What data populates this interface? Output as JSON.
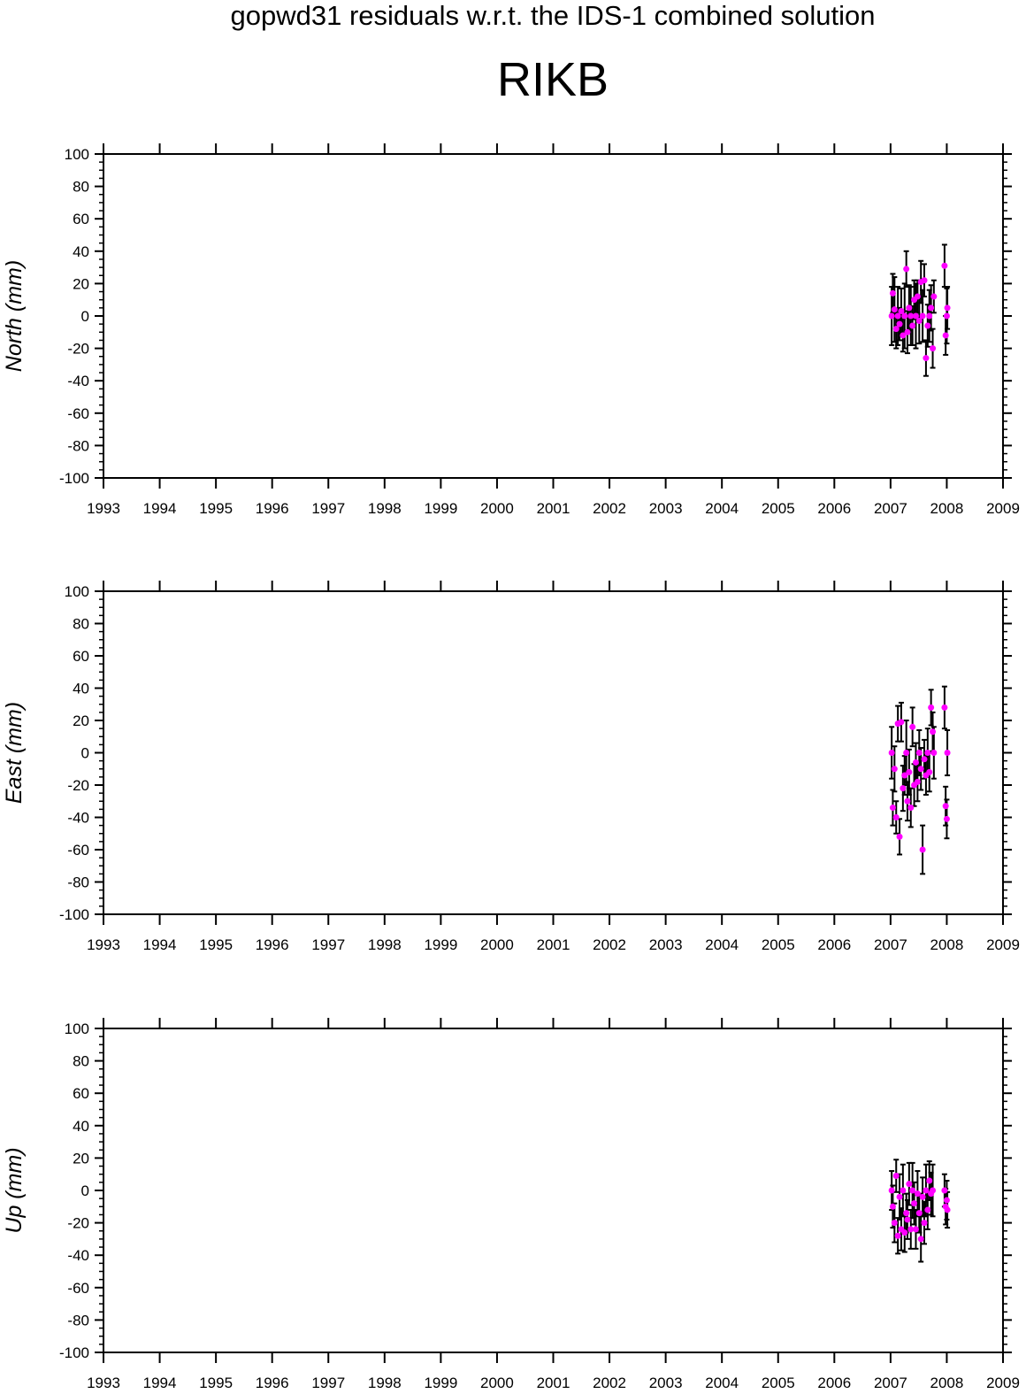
{
  "header": {
    "title": "gopwd31 residuals w.r.t. the IDS-1 combined solution",
    "station": "RIKB"
  },
  "colors": {
    "marker": "#ff00ff",
    "errorbar": "#000000",
    "axis": "#000000",
    "background": "#ffffff"
  },
  "chart_data": [
    {
      "type": "scatter",
      "ylabel": "North (mm)",
      "xlabel": "",
      "xlim": [
        1993,
        2009
      ],
      "ylim": [
        -100,
        100
      ],
      "x_ticks": [
        "1993",
        "1994",
        "1995",
        "1996",
        "1997",
        "1998",
        "1999",
        "2000",
        "2001",
        "2002",
        "2003",
        "2004",
        "2005",
        "2006",
        "2007",
        "2008",
        "2009"
      ],
      "y_ticks": [
        "100",
        "80",
        "60",
        "40",
        "20",
        "0",
        "-20",
        "-40",
        "-60",
        "-80",
        "-100"
      ],
      "grid": false,
      "series": [
        {
          "error_bars": true,
          "points": [
            {
              "x": 2007.02,
              "y": 0,
              "err": 18
            },
            {
              "x": 2007.04,
              "y": 14,
              "err": 12
            },
            {
              "x": 2007.07,
              "y": 4,
              "err": 20
            },
            {
              "x": 2007.1,
              "y": -8,
              "err": 12
            },
            {
              "x": 2007.13,
              "y": 0,
              "err": 18
            },
            {
              "x": 2007.16,
              "y": -5,
              "err": 10
            },
            {
              "x": 2007.19,
              "y": 3,
              "err": 14
            },
            {
              "x": 2007.22,
              "y": -12,
              "err": 10
            },
            {
              "x": 2007.25,
              "y": 0,
              "err": 20
            },
            {
              "x": 2007.28,
              "y": 29,
              "err": 11
            },
            {
              "x": 2007.3,
              "y": -10,
              "err": 13
            },
            {
              "x": 2007.33,
              "y": 5,
              "err": 14
            },
            {
              "x": 2007.36,
              "y": 0,
              "err": 18
            },
            {
              "x": 2007.39,
              "y": -6,
              "err": 12
            },
            {
              "x": 2007.42,
              "y": 10,
              "err": 12
            },
            {
              "x": 2007.45,
              "y": 0,
              "err": 20
            },
            {
              "x": 2007.48,
              "y": 12,
              "err": 10
            },
            {
              "x": 2007.51,
              "y": -3,
              "err": 14
            },
            {
              "x": 2007.54,
              "y": 21,
              "err": 13
            },
            {
              "x": 2007.57,
              "y": 0,
              "err": 16
            },
            {
              "x": 2007.6,
              "y": 22,
              "err": 10
            },
            {
              "x": 2007.63,
              "y": -26,
              "err": 11
            },
            {
              "x": 2007.66,
              "y": -6,
              "err": 13
            },
            {
              "x": 2007.69,
              "y": 0,
              "err": 16
            },
            {
              "x": 2007.72,
              "y": 5,
              "err": 14
            },
            {
              "x": 2007.75,
              "y": -20,
              "err": 12
            },
            {
              "x": 2007.77,
              "y": 12,
              "err": 10
            },
            {
              "x": 2007.96,
              "y": 31,
              "err": 13
            },
            {
              "x": 2007.98,
              "y": -12,
              "err": 12
            },
            {
              "x": 2008.0,
              "y": 0,
              "err": 17
            },
            {
              "x": 2008.01,
              "y": 5,
              "err": 13
            }
          ]
        }
      ]
    },
    {
      "type": "scatter",
      "ylabel": "East (mm)",
      "xlabel": "",
      "xlim": [
        1993,
        2009
      ],
      "ylim": [
        -100,
        100
      ],
      "x_ticks": [
        "1993",
        "1994",
        "1995",
        "1996",
        "1997",
        "1998",
        "1999",
        "2000",
        "2001",
        "2002",
        "2003",
        "2004",
        "2005",
        "2006",
        "2007",
        "2008",
        "2009"
      ],
      "y_ticks": [
        "100",
        "80",
        "60",
        "40",
        "20",
        "0",
        "-20",
        "-40",
        "-60",
        "-80",
        "-100"
      ],
      "grid": false,
      "series": [
        {
          "error_bars": true,
          "points": [
            {
              "x": 2007.02,
              "y": 0,
              "err": 16
            },
            {
              "x": 2007.04,
              "y": -34,
              "err": 11
            },
            {
              "x": 2007.07,
              "y": -10,
              "err": 14
            },
            {
              "x": 2007.1,
              "y": -40,
              "err": 10
            },
            {
              "x": 2007.13,
              "y": 18,
              "err": 11
            },
            {
              "x": 2007.16,
              "y": -52,
              "err": 11
            },
            {
              "x": 2007.19,
              "y": 19,
              "err": 12
            },
            {
              "x": 2007.22,
              "y": -22,
              "err": 14
            },
            {
              "x": 2007.25,
              "y": -14,
              "err": 12
            },
            {
              "x": 2007.28,
              "y": 0,
              "err": 20
            },
            {
              "x": 2007.3,
              "y": -30,
              "err": 12
            },
            {
              "x": 2007.33,
              "y": -12,
              "err": 14
            },
            {
              "x": 2007.36,
              "y": -34,
              "err": 12
            },
            {
              "x": 2007.39,
              "y": 16,
              "err": 12
            },
            {
              "x": 2007.42,
              "y": -20,
              "err": 13
            },
            {
              "x": 2007.45,
              "y": -6,
              "err": 12
            },
            {
              "x": 2007.48,
              "y": -18,
              "err": 12
            },
            {
              "x": 2007.51,
              "y": 0,
              "err": 14
            },
            {
              "x": 2007.54,
              "y": -10,
              "err": 13
            },
            {
              "x": 2007.57,
              "y": -60,
              "err": 15
            },
            {
              "x": 2007.6,
              "y": -4,
              "err": 12
            },
            {
              "x": 2007.63,
              "y": -14,
              "err": 12
            },
            {
              "x": 2007.66,
              "y": 0,
              "err": 15
            },
            {
              "x": 2007.69,
              "y": -12,
              "err": 12
            },
            {
              "x": 2007.72,
              "y": 28,
              "err": 11
            },
            {
              "x": 2007.75,
              "y": 13,
              "err": 12
            },
            {
              "x": 2007.77,
              "y": 0,
              "err": 16
            },
            {
              "x": 2007.96,
              "y": 28,
              "err": 13
            },
            {
              "x": 2007.98,
              "y": -33,
              "err": 12
            },
            {
              "x": 2008.0,
              "y": -41,
              "err": 12
            },
            {
              "x": 2008.01,
              "y": 0,
              "err": 14
            }
          ]
        }
      ]
    },
    {
      "type": "scatter",
      "ylabel": "Up (mm)",
      "xlabel": "",
      "xlim": [
        1993,
        2009
      ],
      "ylim": [
        -100,
        100
      ],
      "x_ticks": [
        "1993",
        "1994",
        "1995",
        "1996",
        "1997",
        "1998",
        "1999",
        "2000",
        "2001",
        "2002",
        "2003",
        "2004",
        "2005",
        "2006",
        "2007",
        "2008",
        "2009"
      ],
      "y_ticks": [
        "100",
        "80",
        "60",
        "40",
        "20",
        "0",
        "-20",
        "-40",
        "-60",
        "-80",
        "-100"
      ],
      "grid": false,
      "series": [
        {
          "error_bars": true,
          "points": [
            {
              "x": 2007.02,
              "y": 0,
              "err": 12
            },
            {
              "x": 2007.04,
              "y": -10,
              "err": 13
            },
            {
              "x": 2007.07,
              "y": -20,
              "err": 12
            },
            {
              "x": 2007.1,
              "y": 9,
              "err": 10
            },
            {
              "x": 2007.13,
              "y": -28,
              "err": 11
            },
            {
              "x": 2007.16,
              "y": -4,
              "err": 14
            },
            {
              "x": 2007.19,
              "y": -24,
              "err": 13
            },
            {
              "x": 2007.22,
              "y": 0,
              "err": 16
            },
            {
              "x": 2007.25,
              "y": -26,
              "err": 12
            },
            {
              "x": 2007.28,
              "y": -14,
              "err": 12
            },
            {
              "x": 2007.3,
              "y": -18,
              "err": 12
            },
            {
              "x": 2007.33,
              "y": 4,
              "err": 13
            },
            {
              "x": 2007.36,
              "y": -24,
              "err": 12
            },
            {
              "x": 2007.39,
              "y": 0,
              "err": 17
            },
            {
              "x": 2007.42,
              "y": -8,
              "err": 13
            },
            {
              "x": 2007.45,
              "y": -24,
              "err": 12
            },
            {
              "x": 2007.48,
              "y": -2,
              "err": 14
            },
            {
              "x": 2007.51,
              "y": -14,
              "err": 12
            },
            {
              "x": 2007.54,
              "y": -30,
              "err": 14
            },
            {
              "x": 2007.57,
              "y": -4,
              "err": 12
            },
            {
              "x": 2007.6,
              "y": -20,
              "err": 13
            },
            {
              "x": 2007.63,
              "y": 0,
              "err": 16
            },
            {
              "x": 2007.66,
              "y": -12,
              "err": 12
            },
            {
              "x": 2007.69,
              "y": 6,
              "err": 12
            },
            {
              "x": 2007.72,
              "y": -2,
              "err": 13
            },
            {
              "x": 2007.75,
              "y": 0,
              "err": 16
            },
            {
              "x": 2007.96,
              "y": 0,
              "err": 10
            },
            {
              "x": 2007.98,
              "y": -10,
              "err": 11
            },
            {
              "x": 2008.0,
              "y": -6,
              "err": 12
            },
            {
              "x": 2008.01,
              "y": -12,
              "err": 11
            }
          ]
        }
      ]
    }
  ]
}
